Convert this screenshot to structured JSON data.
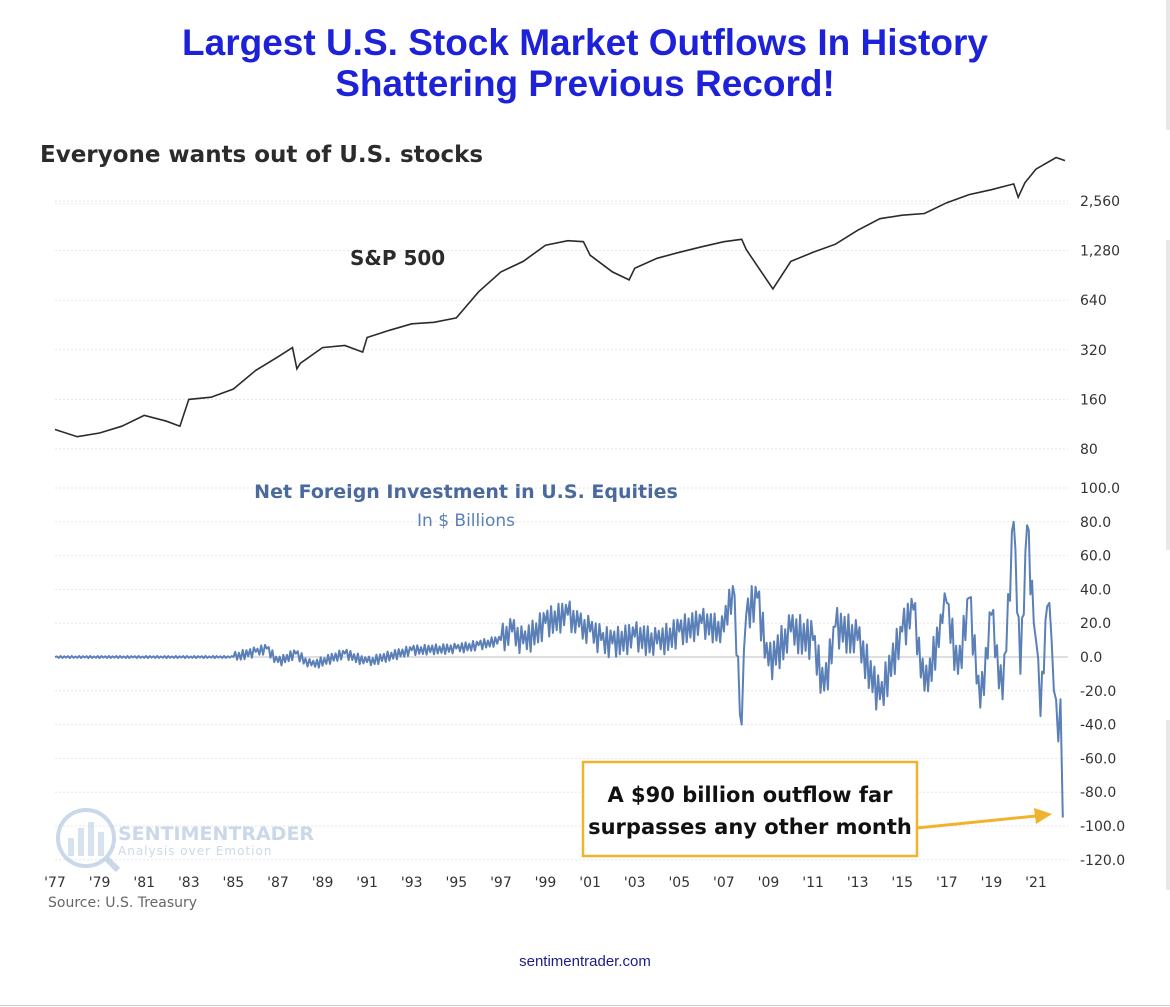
{
  "headline": {
    "line1": "Largest U.S. Stock Market Outflows In History",
    "line2": "Shattering Previous Record!"
  },
  "footer": {
    "site": "sentimentrader.com"
  },
  "colors": {
    "headline": "#1d22d8",
    "sp500_line": "#2b2b2b",
    "flows_line": "#5b7fb7",
    "annotation_border": "#f0b32e",
    "arrow": "#f0b32e",
    "axis_text": "#333333",
    "logo": "#8fb0d3"
  },
  "logo": {
    "name": "SENTIMENTRADER",
    "tagline": "Analysis over Emotion"
  },
  "chart_data": [
    {
      "type": "line",
      "title": "Everyone wants out of U.S. stocks",
      "series": [
        {
          "name": "S&P 500",
          "x": [
            1977,
            1978,
            1979,
            1980,
            1981,
            1982,
            1982.6,
            1983,
            1984,
            1985,
            1986,
            1987,
            1987.65,
            1987.85,
            1988,
            1989,
            1990,
            1990.8,
            1991,
            1992,
            1993,
            1994,
            1995,
            1996,
            1997,
            1998,
            1999,
            2000,
            2000.7,
            2001,
            2002,
            2002.75,
            2003,
            2004,
            2005,
            2006,
            2007,
            2007.8,
            2008,
            2009.2,
            2010,
            2011,
            2012,
            2013,
            2014,
            2015,
            2016,
            2017,
            2018,
            2019,
            2020,
            2020.2,
            2020.5,
            2021,
            2021.9,
            2022.3
          ],
          "values": [
            105,
            95,
            100,
            110,
            128,
            118,
            110,
            160,
            165,
            185,
            240,
            290,
            330,
            245,
            265,
            330,
            340,
            310,
            380,
            420,
            460,
            470,
            500,
            720,
            950,
            1100,
            1380,
            1470,
            1450,
            1200,
            950,
            850,
            1000,
            1150,
            1250,
            1350,
            1450,
            1500,
            1300,
            750,
            1100,
            1250,
            1400,
            1700,
            2000,
            2100,
            2150,
            2500,
            2800,
            3000,
            3250,
            2700,
            3300,
            4000,
            4700,
            4500
          ]
        }
      ],
      "ylim": [
        80,
        4700
      ],
      "yscale": "log2",
      "ytick_labels": [
        "80",
        "160",
        "320",
        "640",
        "1,280",
        "2,560"
      ],
      "grid": true
    },
    {
      "type": "line",
      "title": "Net Foreign Investment in U.S. Equities",
      "subtitle": "In $ Billions",
      "series": [
        {
          "name": "",
          "x": [
            1977,
            1985,
            1986,
            1986.5,
            1987,
            1987.8,
            1988.5,
            1990,
            1991,
            1993,
            1995,
            1996,
            1997,
            1997.5,
            1998,
            1999,
            2000,
            2000.5,
            2001,
            2001.5,
            2002,
            2003,
            2004,
            2005,
            2006,
            2007,
            2007.4,
            2007.8,
            2008,
            2008.5,
            2009,
            2010,
            2011,
            2011.5,
            2012,
            2013,
            2014,
            2015,
            2015.5,
            2016,
            2016.8,
            2017,
            2017.5,
            2018,
            2018.5,
            2019,
            2019.5,
            2020,
            2020.3,
            2020.6,
            2020.9,
            2021,
            2021.2,
            2021.5,
            2021.7,
            2021.8,
            2022,
            2022.1,
            2022.2
          ],
          "values": [
            0,
            0,
            3,
            5,
            -3,
            2,
            -5,
            2,
            -3,
            4,
            5,
            7,
            10,
            15,
            8,
            20,
            25,
            18,
            15,
            10,
            8,
            12,
            8,
            15,
            20,
            15,
            42,
            -40,
            25,
            35,
            -5,
            15,
            10,
            -20,
            18,
            10,
            -25,
            15,
            28,
            -20,
            20,
            32,
            -10,
            35,
            -30,
            25,
            -25,
            80,
            -10,
            78,
            20,
            10,
            -35,
            30,
            10,
            -20,
            -50,
            -25,
            -95
          ]
        }
      ],
      "ylim": [
        -120,
        100
      ],
      "ytick_labels": [
        "100.0",
        "80.0",
        "60.0",
        "40.0",
        "20.0",
        "0.0",
        "-20.0",
        "-40.0",
        "-60.0",
        "-80.0",
        "-100.0",
        "-120.0"
      ],
      "xtick_labels": [
        "'77",
        "'79",
        "'81",
        "'83",
        "'85",
        "'87",
        "'89",
        "'91",
        "'93",
        "'95",
        "'97",
        "'99",
        "'01",
        "'03",
        "'05",
        "'07",
        "'09",
        "'11",
        "'13",
        "'15",
        "'17",
        "'19",
        "'21"
      ],
      "annotation": {
        "line1": "A $90 billion outflow far",
        "line2": "surpasses any other month"
      },
      "source": "Source: U.S. Treasury"
    }
  ]
}
